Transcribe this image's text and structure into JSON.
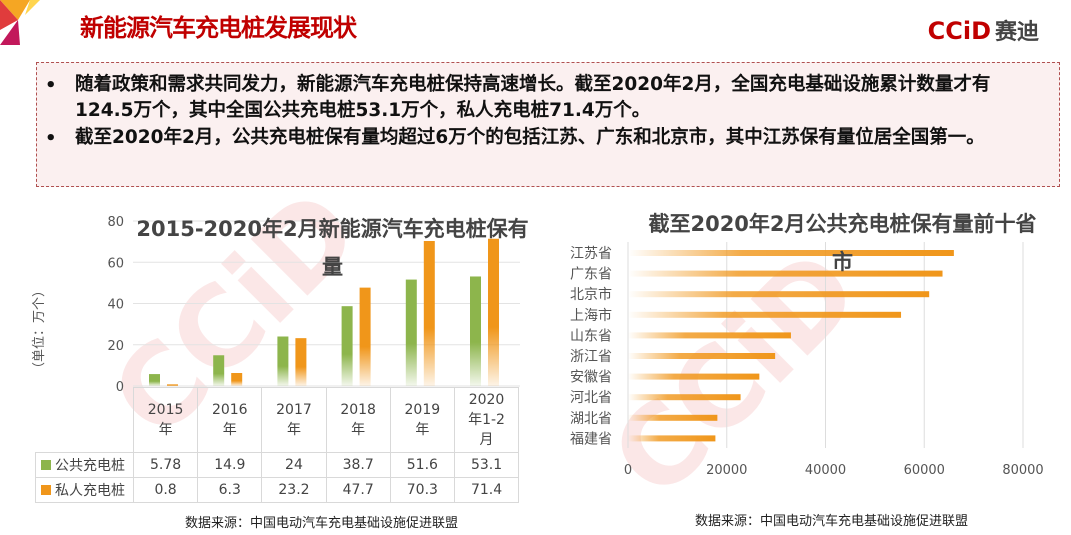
{
  "header": {
    "title": "新能源汽车充电桩发展现状",
    "logo_text": "CCiD",
    "logo_cn": "赛迪"
  },
  "bullets": [
    "随着政策和需求共同发力，新能源汽车充电桩保持高速增长。截至2020年2月，全国充电基础设施累计数量才有124.5万个，其中全国公共充电桩53.1万个，私人充电桩71.4万个。",
    "截至2020年2月，公共充电桩保有量均超过6万个的包括江苏、广东和北京市，其中江苏保有量位居全国第一。"
  ],
  "bullet_symbol": "•",
  "chart_data": [
    {
      "type": "bar",
      "title": "2015-2020年2月新能源汽车充电桩保有量",
      "ylabel": "（单位：万个）",
      "ylim": [
        0,
        80
      ],
      "yticks": [
        "0",
        "20",
        "40",
        "60",
        "80"
      ],
      "grid": true,
      "categories": [
        "2015年",
        "2016年",
        "2017年",
        "2018年",
        "2019年",
        "2020年1-2月"
      ],
      "series": [
        {
          "name": "公共充电桩",
          "color": "#8db54c",
          "values": [
            5.78,
            14.9,
            24,
            38.7,
            51.6,
            53.1
          ]
        },
        {
          "name": "私人充电桩",
          "color": "#f0961a",
          "values": [
            0.8,
            6.3,
            23.2,
            47.7,
            70.3,
            71.4
          ]
        }
      ],
      "table_labels": [
        [
          "5.78",
          "14.9",
          "24",
          "38.7",
          "51.6",
          "53.1"
        ],
        [
          "0.8",
          "6.3",
          "23.2",
          "47.7",
          "70.3",
          "71.4"
        ]
      ],
      "source": "数据来源：中国电动汽车充电基础设施促进联盟"
    },
    {
      "type": "bar",
      "orientation": "horizontal",
      "title": "截至2020年2月公共充电桩保有量前十省市",
      "xlim": [
        0,
        80000
      ],
      "xticks": [
        "0",
        "20000",
        "40000",
        "60000",
        "80000"
      ],
      "grid": true,
      "color": "#f0961a",
      "categories": [
        "江苏省",
        "广东省",
        "北京市",
        "上海市",
        "山东省",
        "浙江省",
        "安徽省",
        "河北省",
        "湖北省",
        "福建省"
      ],
      "values": [
        66000,
        63700,
        61000,
        55300,
        33000,
        29800,
        26600,
        22800,
        18100,
        17700
      ],
      "source": "数据来源：中国电动汽车充电基础设施促进联盟"
    }
  ]
}
